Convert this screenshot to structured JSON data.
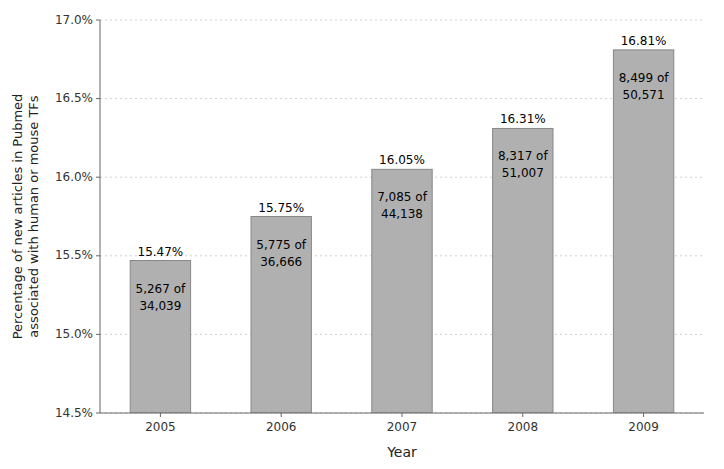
{
  "chart_data": {
    "type": "bar",
    "categories": [
      "2005",
      "2006",
      "2007",
      "2008",
      "2009"
    ],
    "values": [
      15.47,
      15.75,
      16.05,
      16.31,
      16.81
    ],
    "value_labels": [
      "15.47%",
      "15.75%",
      "16.05%",
      "16.31%",
      "16.81%"
    ],
    "data_labels": true,
    "annotations": [
      [
        "5,267 of",
        "34,039"
      ],
      [
        "5,775 of",
        "36,666"
      ],
      [
        "7,085 of",
        "44,138"
      ],
      [
        "8,317 of",
        "51,007"
      ],
      [
        "8,499 of",
        "50,571"
      ]
    ],
    "color": "#b0b0b0",
    "x_label": "Year",
    "y_label": "Percentage of new articles in Pubmed\nassociated with human or mouse TFs",
    "ylim": [
      14.5,
      17.0
    ],
    "yticks": [
      {
        "value": 14.5,
        "label": "14.5%"
      },
      {
        "value": 15.0,
        "label": "15.0%"
      },
      {
        "value": 15.5,
        "label": "15.5%"
      },
      {
        "value": 16.0,
        "label": "16.0%"
      },
      {
        "value": 16.5,
        "label": "16.5%"
      },
      {
        "value": 17.0,
        "label": "17.0%"
      }
    ],
    "grid": true
  }
}
